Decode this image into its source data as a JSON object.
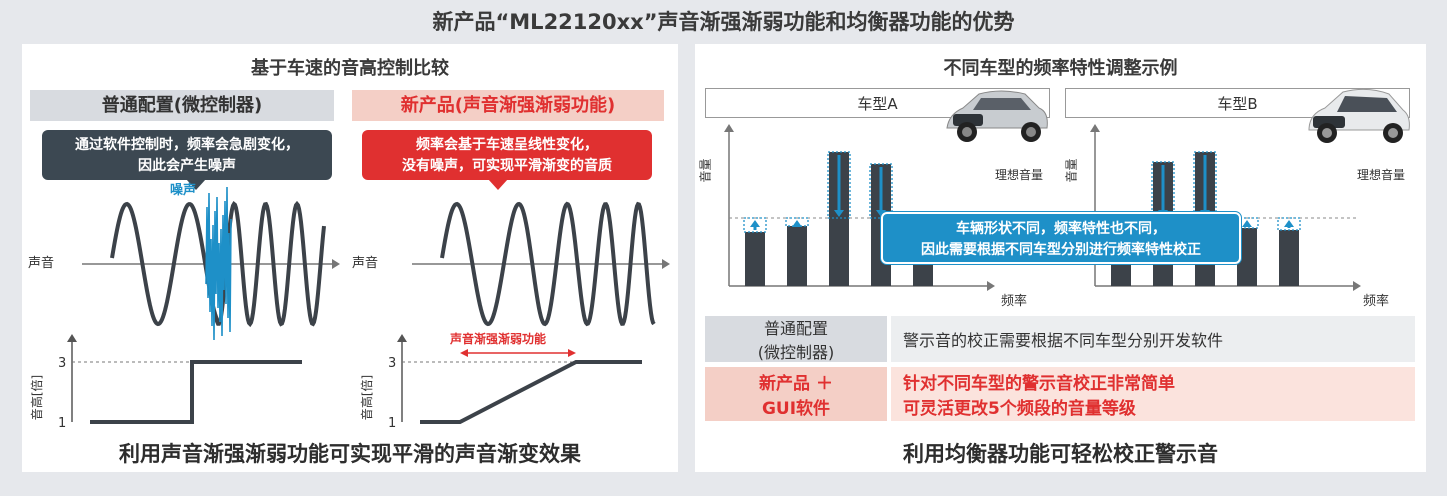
{
  "title": "新产品“ML22120xx”声音渐强渐弱功能和均衡器功能的优势",
  "left": {
    "title": "基于车速的音高控制比较",
    "conventional": {
      "header": "普通配置(微控制器)",
      "callout_line1": "通过软件控制时，频率会急剧变化，",
      "callout_line2": "因此会产生噪声",
      "noise_label": "噪声",
      "sound_label": "声音",
      "pitch_label": "音高[倍]",
      "tick_3": "3",
      "tick_1": "1"
    },
    "new": {
      "header": "新产品(声音渐强渐弱功能)",
      "callout_line1": "频率会基于车速呈线性变化，",
      "callout_line2": "没有噪声，可实现平滑渐变的音质",
      "sound_label": "声音",
      "pitch_label": "音高[倍]",
      "tick_3": "3",
      "tick_1": "1",
      "fade_label": "声音渐强渐弱功能"
    },
    "bottom": "利用声音渐强渐弱功能可实现平滑的声音渐变效果"
  },
  "right": {
    "title": "不同车型的频率特性调整示例",
    "car_a": "车型A",
    "car_b": "车型B",
    "y_label": "音量",
    "x_label": "频率",
    "ideal_label": "理想音量",
    "callout_line1": "车辆形状不同，频率特性也不同，",
    "callout_line2": "因此需要根据不同车型分别进行频率特性校正",
    "rows": [
      {
        "label_line1": "普通配置",
        "label_line2": "(微控制器)",
        "text_line1": "警示音的校正需要根据不同车型分别开发软件",
        "text_line2": ""
      },
      {
        "label_line1": "新产品 ＋",
        "label_line2": "GUI软件",
        "text_line1": "针对不同车型的警示音校正非常简单",
        "text_line2": "可灵活更改5个频段的音量等级"
      }
    ],
    "bottom": "利用均衡器功能可轻松校正警示音"
  },
  "colors": {
    "accent_red": "#e03030",
    "callout_dark": "#3c4852",
    "callout_blue": "#1e90c8",
    "bar": "#3c4249",
    "header_red_bg": "#f4cfc6",
    "header_gray_bg": "#d8dbe0"
  }
}
